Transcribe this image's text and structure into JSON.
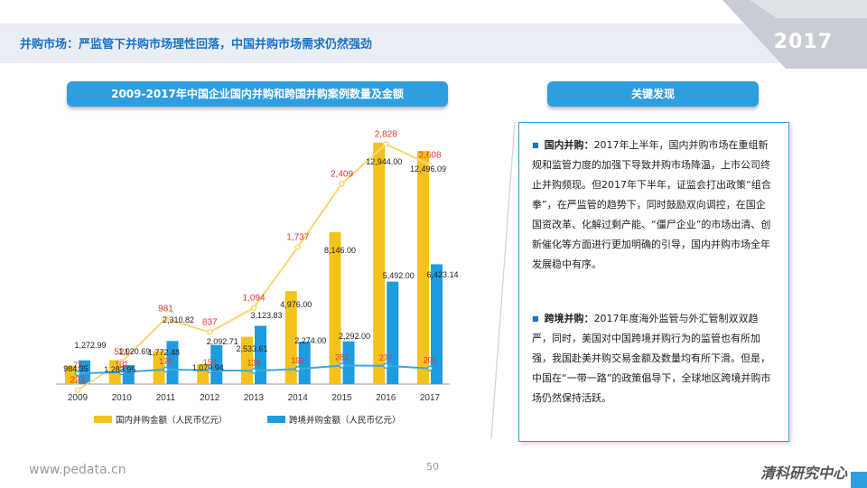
{
  "header": {
    "title": "并购市场：严监管下并购市场理性回落，中国并购市场需求仍然强劲",
    "year": "2017"
  },
  "chart_title": "2009-2017年中国企业国内并购和跨国并购案例数量及金额",
  "findings": {
    "title": "关键发现",
    "para1_head": "国内并购：",
    "para1_body": "2017年上半年，国内并购市场在重组新规和监管力度的加强下导致并购市场降温，上市公司终止并购频现。但2017年下半年，证监会打出政策“组合拳”，在严监管的趋势下，同时鼓励双向调控，在国企国资改革、化解过剩产能、“僵尸企业”的市场出清、创新催化等方面进行更加明确的引导，国内并购市场全年发展稳中有序。",
    "para2_head": "跨境并购：",
    "para2_body": "2017年度海外监管与外汇管制双双趋严，同时，美国对中国跨境并购行为的监管也有所加强，我国赴美并购交易金额及数量均有所下滑。但是，中国在“一带一路”的政策倡导下，全球地区跨境并购市场仍然保持活跃。"
  },
  "footer": {
    "url": "www.pedata.cn",
    "page": "50",
    "brand": "清科研究中心"
  },
  "colors": {
    "domestic_bar": "#f5c21b",
    "cross_bar": "#1f9be0",
    "domestic_line": "#f8d774",
    "cross_line": "#3ca8e0",
    "domestic_count_label": "#e8352e",
    "accent": "#2f9ee0"
  },
  "chart_data": {
    "type": "bar",
    "categories": [
      "2009",
      "2010",
      "2011",
      "2012",
      "2013",
      "2014",
      "2015",
      "2016",
      "2017"
    ],
    "series": [
      {
        "name": "国内并购金额（人民币亿元）",
        "type": "bar",
        "values": [
          984.35,
          1283.95,
          1772.48,
          1079.94,
          2533.61,
          4976.0,
          8146.0,
          12944.0,
          12496.09
        ],
        "labels": [
          "984.35",
          "1,283.95",
          "1,772.48",
          "1,079.94",
          "2,533.61",
          "4,976.00",
          "8,146.00",
          "12,944.00",
          "12,496.09"
        ]
      },
      {
        "name": "跨境并购金额（人民币亿元）",
        "type": "bar",
        "values": [
          1272.99,
          1020.69,
          2310.82,
          2092.71,
          3123.83,
          2274.0,
          2292.0,
          5492.0,
          6423.14
        ],
        "labels": [
          "1,272.99",
          "1,020.69",
          "2,310.82",
          "2,092.71",
          "3,123.83",
          "2,274.00",
          "2,292.00",
          "5,492.00",
          "6,423.14"
        ]
      },
      {
        "type": "line",
        "values": [
          223,
          521,
          981,
          837,
          1094,
          1737,
          2409,
          2828,
          2608
        ],
        "labels": [
          "223",
          "521",
          "981",
          "837",
          "1,094",
          "1,737",
          "2,409",
          "2,828",
          "2,608"
        ]
      },
      {
        "type": "line",
        "values": [
          72,
          101,
          176,
          154,
          138,
          192,
          283,
          277,
          205
        ],
        "labels": [
          "72",
          "101",
          "176",
          "154",
          "138",
          "192",
          "283",
          "277",
          "205"
        ]
      }
    ],
    "legend": "bottom",
    "grid": false
  }
}
